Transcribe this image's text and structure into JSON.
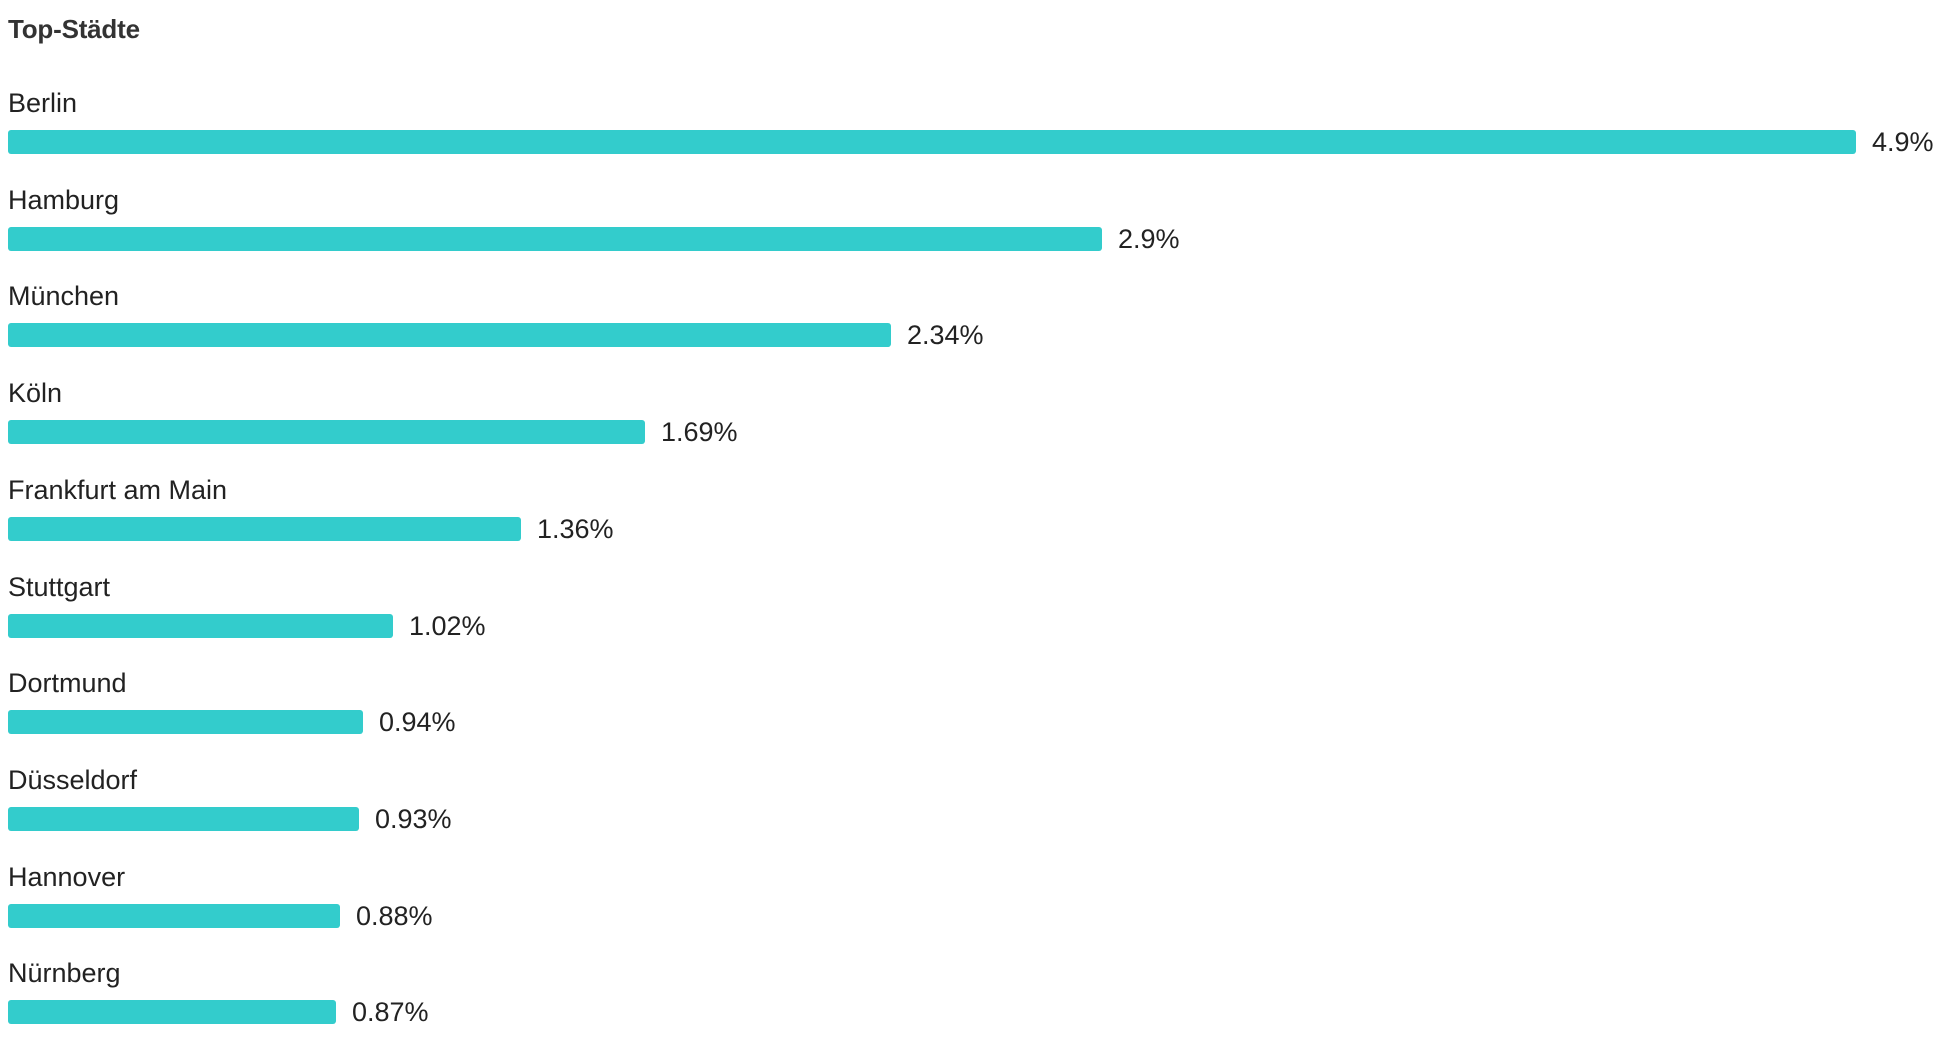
{
  "chart_data": {
    "type": "bar",
    "orientation": "horizontal",
    "title": "Top-Städte",
    "categories": [
      "Berlin",
      "Hamburg",
      "München",
      "Köln",
      "Frankfurt am Main",
      "Stuttgart",
      "Dortmund",
      "Düsseldorf",
      "Hannover",
      "Nürnberg"
    ],
    "values": [
      4.9,
      2.9,
      2.34,
      1.69,
      1.36,
      1.02,
      0.94,
      0.93,
      0.88,
      0.87
    ],
    "value_labels": [
      "4.9%",
      "2.9%",
      "2.34%",
      "1.69%",
      "1.36%",
      "1.02%",
      "0.94%",
      "0.93%",
      "0.88%",
      "0.87%"
    ],
    "unit": "%",
    "xlim": [
      0,
      4.9
    ],
    "grid": false,
    "legend": "none",
    "colors": {
      "bar": "#33cccc",
      "text": "#222222",
      "title": "#333333"
    }
  }
}
